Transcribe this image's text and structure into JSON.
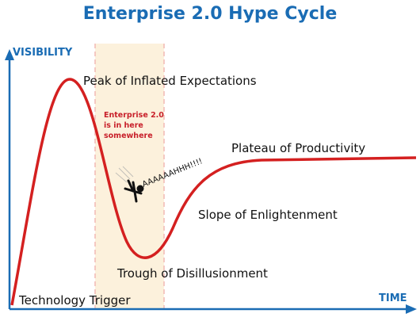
{
  "title": "Enterprise 2.0 Hype Cycle",
  "axes": {
    "y_label": "VISIBILITY",
    "x_label": "TIME"
  },
  "phases": [
    {
      "label": "Technology Trigger"
    },
    {
      "label": "Peak of Inflated Expectations"
    },
    {
      "label": "Trough of Disillusionment"
    },
    {
      "label": "Slope of Enlightenment"
    },
    {
      "label": "Plateau of Productivity"
    }
  ],
  "annotation": {
    "lines": [
      "Enterprise 2.0",
      "is in here",
      "somewhere"
    ]
  },
  "scream": "AAAAAAHHH!!!!"
}
